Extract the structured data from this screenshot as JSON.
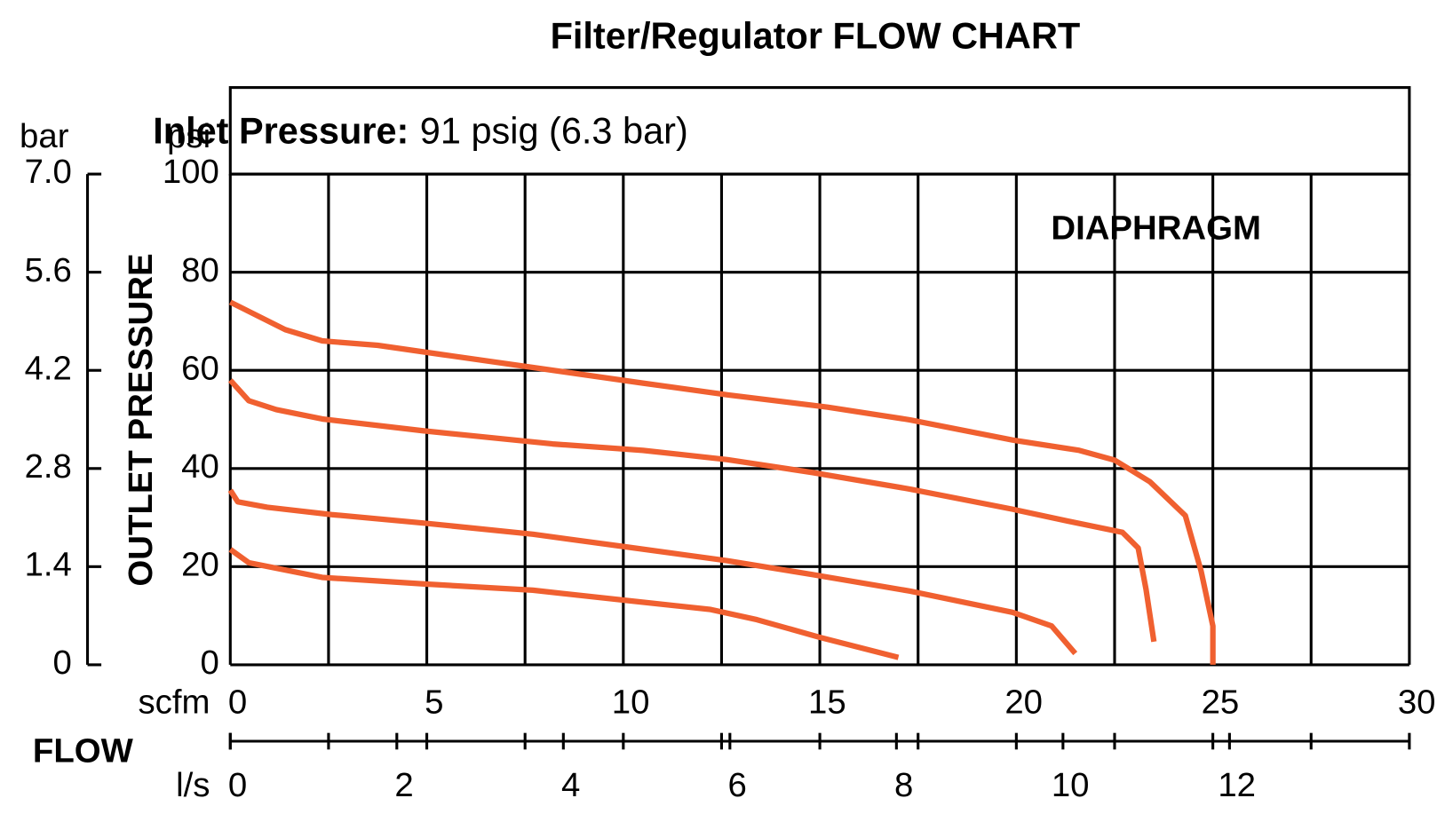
{
  "chart_data": {
    "type": "line",
    "title": "Filter/Regulator FLOW CHART",
    "subtitle_bold": "Inlet Pressure:",
    "subtitle": "91 psig (6.3 bar)",
    "annotation": "DIAPHRAGM",
    "ylabel": "OUTLET PRESSURE",
    "yunit": "psi",
    "y2unit": "bar",
    "xlabel": "FLOW",
    "xunit": "scfm",
    "x2unit": "l/s",
    "xlim": [
      0,
      30
    ],
    "xticks": [
      0,
      5,
      10,
      15,
      20,
      25,
      30
    ],
    "xgrid": [
      0,
      2.5,
      5,
      7.5,
      10,
      12.5,
      15,
      17.5,
      20,
      22.5,
      25,
      27.5,
      30
    ],
    "x2lim": [
      0,
      14.16
    ],
    "x2ticks": [
      0,
      2,
      4,
      6,
      8,
      10,
      12
    ],
    "ylim": [
      0,
      100
    ],
    "yticks": [
      0,
      20,
      40,
      60,
      80,
      100
    ],
    "y2lim": [
      0,
      7
    ],
    "y2ticks": [
      0,
      1.4,
      2.8,
      4.2,
      5.6,
      {
        "value": 7,
        "label": "7.0"
      }
    ],
    "grid": true,
    "series": [
      {
        "color": "#f06030",
        "x": [
          0,
          1.4,
          2.34,
          3.75,
          5.4,
          8.4,
          10.5,
          12.65,
          15.2,
          17.3,
          19.9,
          21.6,
          22.5,
          23.4,
          24.3,
          24.7,
          25.0,
          25.0
        ],
        "values": [
          73.9,
          68.3,
          66,
          65.1,
          63.2,
          59.8,
          57.4,
          55,
          52.5,
          49.9,
          45.8,
          43.7,
          41.7,
          37.3,
          30.4,
          19.1,
          7.9,
          0
        ]
      },
      {
        "color": "#f06030",
        "x": [
          0,
          0.47,
          1.17,
          2.34,
          4.9,
          8.2,
          10.5,
          12.65,
          14.8,
          17.3,
          19.9,
          21.3,
          22.7,
          23.1,
          23.3,
          23.5
        ],
        "values": [
          58,
          53.8,
          52,
          50.1,
          47.7,
          45,
          43.7,
          41.8,
          39.2,
          35.8,
          31.7,
          29.3,
          27,
          23.8,
          15.4,
          4.7
        ]
      },
      {
        "color": "#f06030",
        "x": [
          0,
          0.19,
          0.94,
          2.58,
          4.9,
          7.7,
          10.1,
          12.65,
          14.8,
          17.3,
          19.9,
          20.9,
          21.5
        ],
        "values": [
          35.6,
          33.2,
          32.1,
          30.6,
          28.9,
          26.6,
          24,
          21.2,
          18.4,
          15,
          10.7,
          7.9,
          2.3
        ]
      },
      {
        "color": "#f06030",
        "x": [
          0,
          0.47,
          2.34,
          4.9,
          7.7,
          10.1,
          12.2,
          13.4,
          15,
          17
        ],
        "values": [
          23.5,
          20.8,
          17.8,
          16.5,
          15.2,
          13.1,
          11.3,
          9.2,
          5.6,
          1.5
        ]
      }
    ]
  }
}
